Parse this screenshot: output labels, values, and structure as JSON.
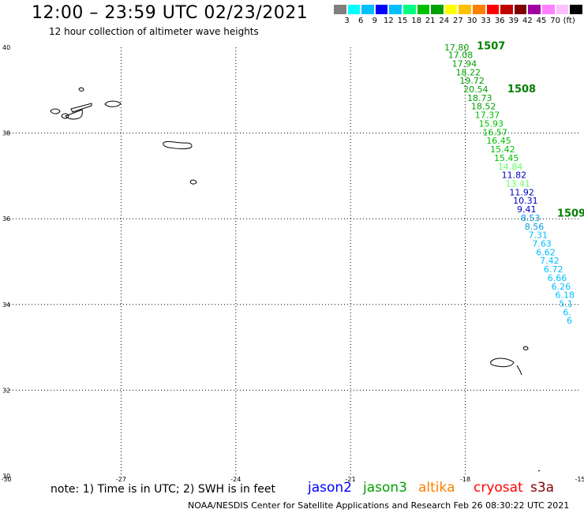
{
  "header": {
    "title": "12:00 – 23:59 UTC 02/23/2021",
    "subtitle": "12 hour collection of altimeter wave heights"
  },
  "colorbar": {
    "colors": [
      "#808080",
      "#00ffff",
      "#00bfff",
      "#0000ff",
      "#00bfff",
      "#00ff7f",
      "#00c000",
      "#00a000",
      "#ffff00",
      "#ffc000",
      "#ff8000",
      "#ff0000",
      "#c00000",
      "#800000",
      "#a000a0",
      "#ff80ff",
      "#ffc0ff",
      "#000000"
    ],
    "labels": [
      "3",
      "6",
      "9",
      "12",
      "15",
      "18",
      "21",
      "24",
      "27",
      "30",
      "33",
      "36",
      "39",
      "42",
      "45",
      "70",
      "(ft)"
    ]
  },
  "map": {
    "lon_ticks": [
      "-30",
      "-27",
      "-24",
      "-21",
      "-18",
      "-15"
    ],
    "lat_ticks": [
      "40",
      "38",
      "36",
      "34",
      "32",
      "30"
    ],
    "lon_min": -30,
    "lon_max": -15,
    "lat_min": 30,
    "lat_max": 40
  },
  "track": {
    "passes": [
      {
        "label": "1507",
        "lat": 39.95,
        "lon": -17.7
      },
      {
        "label": "1508",
        "lat": 38.95,
        "lon": -16.9
      },
      {
        "label": "1509",
        "lat": 36.05,
        "lon": -15.6
      }
    ],
    "points": [
      {
        "lat": 39.93,
        "lon": -18.55,
        "swh": "17.80",
        "color": "#00a000"
      },
      {
        "lat": 39.75,
        "lon": -18.45,
        "swh": "17.08",
        "color": "#00a000"
      },
      {
        "lat": 39.55,
        "lon": -18.35,
        "swh": "17.94",
        "color": "#00a000"
      },
      {
        "lat": 39.35,
        "lon": -18.25,
        "swh": "18.22",
        "color": "#00a000"
      },
      {
        "lat": 39.15,
        "lon": -18.15,
        "swh": "19.72",
        "color": "#00a000"
      },
      {
        "lat": 38.95,
        "lon": -18.05,
        "swh": "20.54",
        "color": "#00a000"
      },
      {
        "lat": 38.75,
        "lon": -17.95,
        "swh": "18.73",
        "color": "#00a000"
      },
      {
        "lat": 38.55,
        "lon": -17.85,
        "swh": "18.52",
        "color": "#00a000"
      },
      {
        "lat": 38.35,
        "lon": -17.75,
        "swh": "17.37",
        "color": "#00c000"
      },
      {
        "lat": 38.15,
        "lon": -17.65,
        "swh": "15.93",
        "color": "#00c000"
      },
      {
        "lat": 37.95,
        "lon": -17.55,
        "swh": "16.57",
        "color": "#00c000"
      },
      {
        "lat": 37.75,
        "lon": -17.45,
        "swh": "16.45",
        "color": "#00c000"
      },
      {
        "lat": 37.55,
        "lon": -17.35,
        "swh": "15.42",
        "color": "#00c000"
      },
      {
        "lat": 37.35,
        "lon": -17.25,
        "swh": "15.45",
        "color": "#00c000"
      },
      {
        "lat": 37.15,
        "lon": -17.15,
        "swh": "14.84",
        "color": "#66ff66"
      },
      {
        "lat": 36.95,
        "lon": -17.05,
        "swh": "11.82",
        "color": "#0000c0"
      },
      {
        "lat": 36.75,
        "lon": -16.95,
        "swh": "13.41",
        "color": "#66ff66"
      },
      {
        "lat": 36.55,
        "lon": -16.85,
        "swh": "11.92",
        "color": "#0000c0"
      },
      {
        "lat": 36.35,
        "lon": -16.75,
        "swh": "10.31",
        "color": "#0000c0"
      },
      {
        "lat": 36.15,
        "lon": -16.65,
        "swh": "9.41",
        "color": "#0000c0"
      },
      {
        "lat": 35.95,
        "lon": -16.55,
        "swh": "8.53",
        "color": "#00a0e0"
      },
      {
        "lat": 35.75,
        "lon": -16.45,
        "swh": "8.56",
        "color": "#00a0e0"
      },
      {
        "lat": 35.55,
        "lon": -16.35,
        "swh": "7.31",
        "color": "#00bfff"
      },
      {
        "lat": 35.35,
        "lon": -16.25,
        "swh": "7.63",
        "color": "#00bfff"
      },
      {
        "lat": 35.15,
        "lon": -16.15,
        "swh": "6.62",
        "color": "#00bfff"
      },
      {
        "lat": 34.95,
        "lon": -16.05,
        "swh": "7.42",
        "color": "#00bfff"
      },
      {
        "lat": 34.75,
        "lon": -15.95,
        "swh": "6.72",
        "color": "#00bfff"
      },
      {
        "lat": 34.55,
        "lon": -15.85,
        "swh": "6.66",
        "color": "#00bfff"
      },
      {
        "lat": 34.35,
        "lon": -15.75,
        "swh": "6.26",
        "color": "#00bfff"
      },
      {
        "lat": 34.15,
        "lon": -15.65,
        "swh": "6.18",
        "color": "#00bfff"
      },
      {
        "lat": 33.95,
        "lon": -15.55,
        "swh": "5.1",
        "color": "#00bfff"
      },
      {
        "lat": 33.75,
        "lon": -15.45,
        "swh": "6.",
        "color": "#00bfff"
      },
      {
        "lat": 33.55,
        "lon": -15.35,
        "swh": "6",
        "color": "#00bfff"
      }
    ]
  },
  "note": "note: 1) Time is in UTC; 2) SWH is in feet",
  "legend": [
    {
      "name": "jason2",
      "color": "#0000ff"
    },
    {
      "name": "jason3",
      "color": "#00a000"
    },
    {
      "name": "altika",
      "color": "#ff8000"
    },
    {
      "name": "cryosat",
      "color": "#ff0000"
    },
    {
      "name": "s3a",
      "color": "#800000"
    }
  ],
  "footer": "NOAA/NESDIS Center for Satellite Applications and Research    Feb 26 08:30:22 UTC 2021"
}
